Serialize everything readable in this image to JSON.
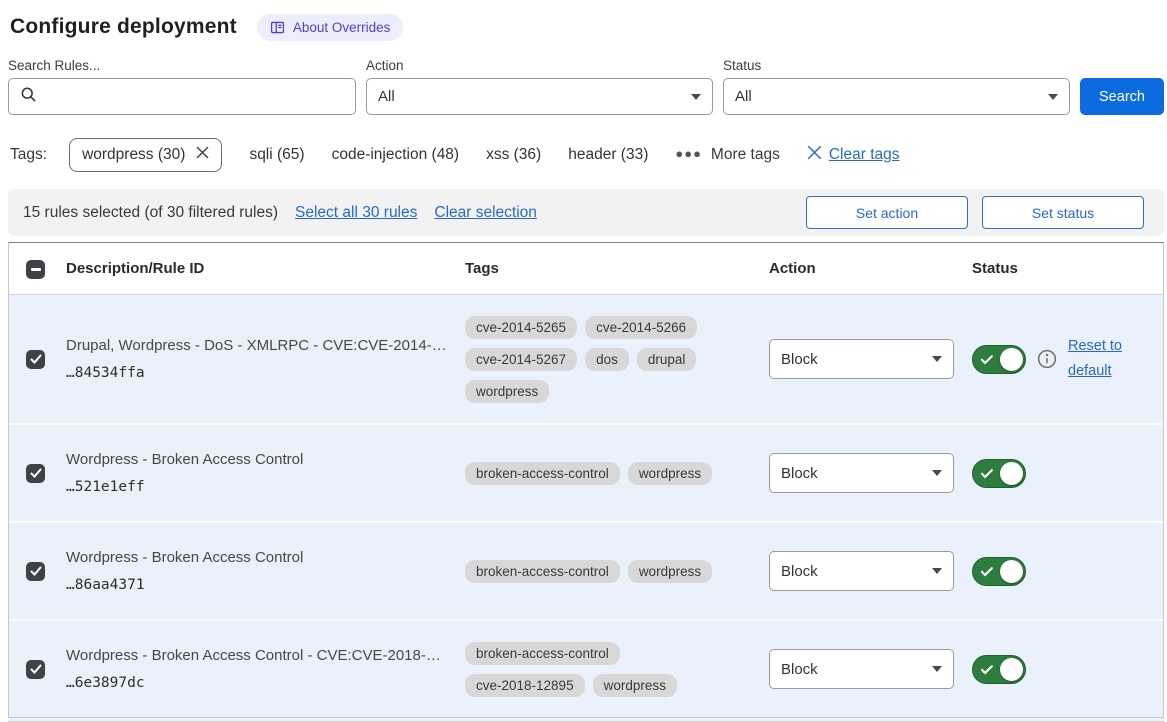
{
  "page": {
    "title": "Configure deployment",
    "about_badge": "About Overrides"
  },
  "filters": {
    "search_label": "Search Rules...",
    "search_value": "",
    "action_label": "Action",
    "action_value": "All",
    "status_label": "Status",
    "status_value": "All",
    "search_button": "Search"
  },
  "tags_bar": {
    "label": "Tags:",
    "selected_tag": "wordpress (30)",
    "tags": [
      "sqli (65)",
      "code-injection (48)",
      "xss (36)",
      "header (33)"
    ],
    "more_tags": "More tags",
    "clear_tags": "Clear tags"
  },
  "selection_bar": {
    "summary": "15 rules selected (of 30 filtered rules)",
    "select_all": "Select all 30 rules",
    "clear_selection": "Clear selection",
    "set_action": "Set action",
    "set_status": "Set status"
  },
  "table": {
    "columns": [
      "Description/Rule ID",
      "Tags",
      "Action",
      "Status"
    ],
    "rows": [
      {
        "description": "Drupal, Wordpress - DoS - XMLRPC - CVE:CVE-2014-…",
        "rule_id": "…84534ffa",
        "tags": [
          "cve-2014-5265",
          "cve-2014-5266",
          "cve-2014-5267",
          "dos",
          "drupal",
          "wordpress"
        ],
        "action": "Block",
        "status_on": true,
        "selected": true,
        "has_reset": true,
        "reset_link": "Reset to default"
      },
      {
        "description": "Wordpress - Broken Access Control",
        "rule_id": "…521e1eff",
        "tags": [
          "broken-access-control",
          "wordpress"
        ],
        "action": "Block",
        "status_on": true,
        "selected": true,
        "has_reset": false
      },
      {
        "description": "Wordpress - Broken Access Control",
        "rule_id": "…86aa4371",
        "tags": [
          "broken-access-control",
          "wordpress"
        ],
        "action": "Block",
        "status_on": true,
        "selected": true,
        "has_reset": false
      },
      {
        "description": "Wordpress - Broken Access Control - CVE:CVE-2018-…",
        "rule_id": "…6e3897dc",
        "tags": [
          "broken-access-control",
          "cve-2018-12895",
          "wordpress"
        ],
        "action": "Block",
        "status_on": true,
        "selected": true,
        "has_reset": false
      }
    ]
  },
  "icons": {
    "book-icon": "open book glyph in About Overrides badge",
    "search-icon": "magnifier",
    "chevron-down-icon": "filled down caret",
    "close-icon": "x cross",
    "ellipsis-icon": "three dots",
    "minus-icon": "indeterminate checkbox bar",
    "check-icon": "checkmark",
    "info-icon": "circled i"
  },
  "colors": {
    "accent_blue": "#0b6ce0",
    "link_blue": "#2969c6",
    "toggle_green": "#2d7d3e",
    "row_bg": "#eaf1fb",
    "badge_bg": "#ededfb",
    "badge_text": "#4d43c9",
    "pill_bg": "#d8d8d8",
    "checkbox_bg": "#3f4347"
  }
}
